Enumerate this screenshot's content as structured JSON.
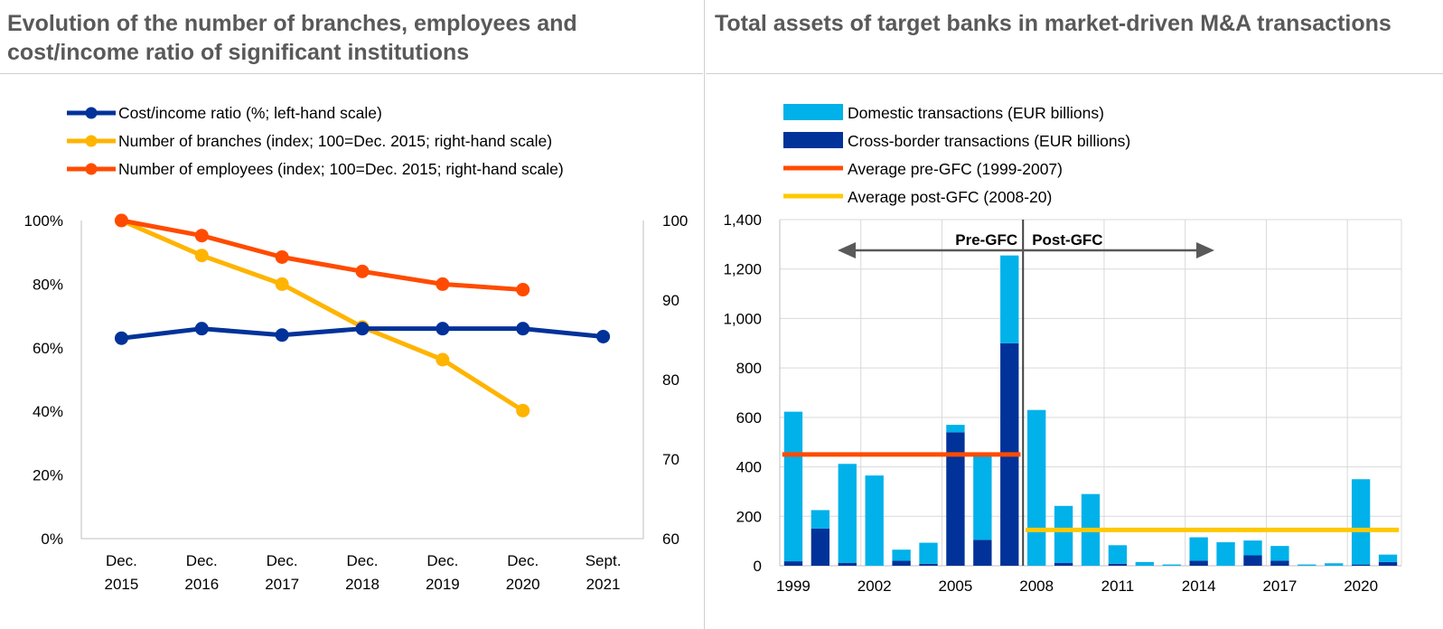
{
  "chart_data": [
    {
      "type": "line",
      "title": "Evolution of the number of branches, employees and cost/income ratio of significant institutions",
      "categories": [
        "Dec. 2015",
        "Dec. 2016",
        "Dec. 2017",
        "Dec. 2018",
        "Dec. 2019",
        "Dec. 2020",
        "Sept. 2021"
      ],
      "x_tick_labels": [
        [
          "Dec.",
          "2015"
        ],
        [
          "Dec.",
          "2016"
        ],
        [
          "Dec.",
          "2017"
        ],
        [
          "Dec.",
          "2018"
        ],
        [
          "Dec.",
          "2019"
        ],
        [
          "Dec.",
          "2020"
        ],
        [
          "Sept.",
          "2021"
        ]
      ],
      "y_left": {
        "ylim": [
          0,
          100
        ],
        "ticks": [
          "0%",
          "20%",
          "40%",
          "60%",
          "80%",
          "100%"
        ]
      },
      "y_right": {
        "ylim": [
          60,
          100
        ],
        "ticks": [
          "60",
          "70",
          "80",
          "90",
          "100"
        ]
      },
      "legend_position": "top-left",
      "series": [
        {
          "name": "Cost/income ratio (%; left-hand scale)",
          "axis": "left",
          "color": "#003299",
          "values": [
            63,
            66,
            64,
            66,
            66,
            66,
            63.5
          ]
        },
        {
          "name": "Number of branches (index; 100=Dec. 2015; right-hand scale)",
          "axis": "right",
          "color": "#ffb400",
          "values": [
            100,
            95.6,
            92,
            86.6,
            82.5,
            76.1,
            null
          ]
        },
        {
          "name": "Number of employees (index; 100=Dec. 2015; right-hand scale)",
          "axis": "right",
          "color": "#ff4b00",
          "values": [
            100,
            98.1,
            95.4,
            93.6,
            92,
            91.3,
            null
          ]
        }
      ]
    },
    {
      "type": "bar",
      "stacked": true,
      "title": "Total assets of target banks in market-driven M&A transactions",
      "years": [
        1999,
        2000,
        2001,
        2002,
        2003,
        2004,
        2005,
        2006,
        2007,
        2008,
        2009,
        2010,
        2011,
        2012,
        2013,
        2014,
        2015,
        2016,
        2017,
        2018,
        2019,
        2020,
        2021
      ],
      "x_tick_labels": [
        "1999",
        "2002",
        "2005",
        "2008",
        "2011",
        "2014",
        "2017",
        "2020"
      ],
      "ylim": [
        0,
        1400
      ],
      "y_ticks": [
        "0",
        "200",
        "400",
        "600",
        "800",
        "1,000",
        "1,200",
        "1,400"
      ],
      "legend_position": "top-left",
      "series": [
        {
          "name": "Domestic transactions (EUR billions)",
          "color": "#00b1ea",
          "values": [
            605,
            75,
            400,
            365,
            45,
            85,
            30,
            350,
            355,
            630,
            230,
            290,
            75,
            15,
            5,
            95,
            95,
            60,
            60,
            5,
            10,
            345,
            30
          ]
        },
        {
          "name": "Cross-border transactions (EUR billions)",
          "color": "#003299",
          "values": [
            18,
            150,
            12,
            0,
            20,
            8,
            540,
            105,
            900,
            0,
            12,
            0,
            8,
            0,
            0,
            20,
            0,
            42,
            20,
            0,
            0,
            5,
            15
          ]
        }
      ],
      "averages": [
        {
          "name": "Average pre-GFC (1999-2007)",
          "color": "#ff4b00",
          "value": 450,
          "from": 1999,
          "to": 2007
        },
        {
          "name": "Average post-GFC (2008-20)",
          "color": "#ffc800",
          "value": 145,
          "from": 2008,
          "to": 2021
        }
      ],
      "annotations": {
        "pre": "Pre-GFC",
        "post": "Post-GFC"
      }
    }
  ]
}
